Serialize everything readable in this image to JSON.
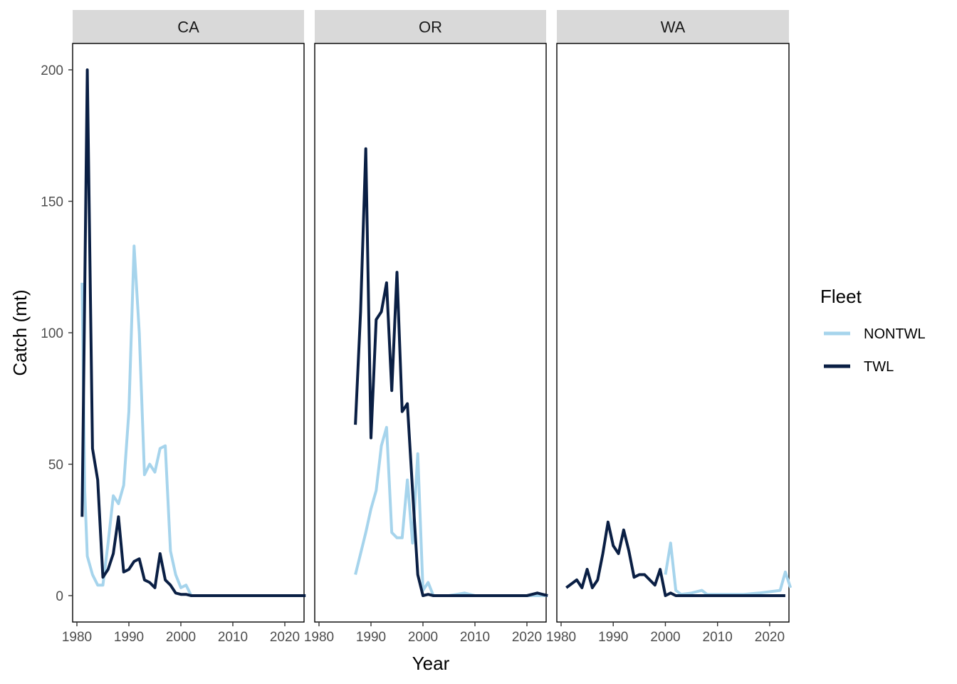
{
  "chart_data": {
    "type": "line",
    "xlabel": "Year",
    "ylabel": "Catch (mt)",
    "xlim": [
      1980,
      2025
    ],
    "ylim": [
      0,
      200
    ],
    "x_ticks": [
      1980,
      1990,
      2000,
      2010,
      2020
    ],
    "y_ticks": [
      0,
      50,
      100,
      150,
      200
    ],
    "legend": {
      "title": "Fleet",
      "placement": "right",
      "entries": [
        {
          "name": "NONTWL",
          "color": "#a6d4ec"
        },
        {
          "name": "TWL",
          "color": "#0a1f44"
        }
      ]
    },
    "facets": [
      {
        "label": "CA",
        "series": [
          {
            "name": "NONTWL",
            "color": "#a6d4ec",
            "points": [
              [
                1981,
                119
              ],
              [
                1981.5,
                40
              ],
              [
                1982,
                15
              ],
              [
                1983,
                8
              ],
              [
                1984,
                4
              ],
              [
                1985,
                4
              ],
              [
                1986,
                20
              ],
              [
                1987,
                38
              ],
              [
                1988,
                35
              ],
              [
                1989,
                42
              ],
              [
                1990,
                70
              ],
              [
                1991,
                133
              ],
              [
                1992,
                100
              ],
              [
                1993,
                46
              ],
              [
                1994,
                50
              ],
              [
                1995,
                47
              ],
              [
                1996,
                56
              ],
              [
                1997,
                57
              ],
              [
                1998,
                17
              ],
              [
                1999,
                8
              ],
              [
                2000,
                3
              ],
              [
                2001,
                4
              ],
              [
                2002,
                0
              ],
              [
                2005,
                0
              ],
              [
                2010,
                0
              ],
              [
                2015,
                0
              ],
              [
                2020,
                0
              ],
              [
                2024,
                0
              ]
            ]
          },
          {
            "name": "TWL",
            "color": "#0a1f44",
            "points": [
              [
                1981,
                30
              ],
              [
                1982,
                200
              ],
              [
                1983,
                56
              ],
              [
                1984,
                44
              ],
              [
                1985,
                7
              ],
              [
                1986,
                10
              ],
              [
                1987,
                16
              ],
              [
                1988,
                30
              ],
              [
                1989,
                9
              ],
              [
                1990,
                10
              ],
              [
                1991,
                13
              ],
              [
                1992,
                14
              ],
              [
                1993,
                6
              ],
              [
                1994,
                5
              ],
              [
                1995,
                3
              ],
              [
                1996,
                16
              ],
              [
                1997,
                6
              ],
              [
                1998,
                4
              ],
              [
                1999,
                1
              ],
              [
                2000,
                0.5
              ],
              [
                2001,
                0.5
              ],
              [
                2002,
                0
              ],
              [
                2005,
                0
              ],
              [
                2010,
                0
              ],
              [
                2015,
                0
              ],
              [
                2020,
                0
              ],
              [
                2024,
                0
              ]
            ]
          }
        ]
      },
      {
        "label": "OR",
        "series": [
          {
            "name": "NONTWL",
            "color": "#a6d4ec",
            "points": [
              [
                1987,
                8
              ],
              [
                1988,
                16
              ],
              [
                1989,
                24
              ],
              [
                1990,
                33
              ],
              [
                1991,
                40
              ],
              [
                1992,
                57
              ],
              [
                1993,
                64
              ],
              [
                1994,
                24
              ],
              [
                1995,
                22
              ],
              [
                1996,
                22
              ],
              [
                1997,
                44
              ],
              [
                1998,
                20
              ],
              [
                1999,
                54
              ],
              [
                2000,
                2
              ],
              [
                2001,
                5
              ],
              [
                2002,
                0
              ],
              [
                2005,
                0
              ],
              [
                2008,
                1
              ],
              [
                2010,
                0
              ],
              [
                2015,
                0
              ],
              [
                2020,
                0
              ],
              [
                2024,
                0
              ]
            ]
          },
          {
            "name": "TWL",
            "color": "#0a1f44",
            "points": [
              [
                1987,
                65
              ],
              [
                1988,
                108
              ],
              [
                1989,
                170
              ],
              [
                1990,
                60
              ],
              [
                1991,
                105
              ],
              [
                1992,
                108
              ],
              [
                1993,
                119
              ],
              [
                1994,
                78
              ],
              [
                1995,
                123
              ],
              [
                1996,
                70
              ],
              [
                1997,
                73
              ],
              [
                1998,
                40
              ],
              [
                1999,
                8
              ],
              [
                2000,
                0
              ],
              [
                2001,
                0.5
              ],
              [
                2002,
                0
              ],
              [
                2005,
                0
              ],
              [
                2010,
                0
              ],
              [
                2015,
                0
              ],
              [
                2020,
                0
              ],
              [
                2022,
                1
              ],
              [
                2024,
                0
              ]
            ]
          }
        ]
      },
      {
        "label": "WA",
        "series": [
          {
            "name": "NONTWL",
            "color": "#a6d4ec",
            "points": [
              [
                2000,
                8
              ],
              [
                2001,
                20
              ],
              [
                2002,
                2
              ],
              [
                2003,
                0.5
              ],
              [
                2005,
                1
              ],
              [
                2007,
                2
              ],
              [
                2008,
                0.5
              ],
              [
                2010,
                0.5
              ],
              [
                2015,
                0.5
              ],
              [
                2018,
                1
              ],
              [
                2020,
                1.5
              ],
              [
                2022,
                2
              ],
              [
                2023,
                9
              ],
              [
                2024,
                3
              ]
            ]
          },
          {
            "name": "TWL",
            "color": "#0a1f44",
            "points": [
              [
                1981,
                3
              ],
              [
                1983,
                6
              ],
              [
                1984,
                3
              ],
              [
                1985,
                10
              ],
              [
                1986,
                3
              ],
              [
                1987,
                6
              ],
              [
                1988,
                16
              ],
              [
                1989,
                28
              ],
              [
                1990,
                19
              ],
              [
                1991,
                16
              ],
              [
                1992,
                25
              ],
              [
                1993,
                17
              ],
              [
                1994,
                7
              ],
              [
                1995,
                8
              ],
              [
                1996,
                8
              ],
              [
                1997,
                6
              ],
              [
                1998,
                4
              ],
              [
                1999,
                10
              ],
              [
                2000,
                0
              ],
              [
                2001,
                1
              ],
              [
                2002,
                0
              ],
              [
                2005,
                0
              ],
              [
                2010,
                0
              ],
              [
                2015,
                0
              ],
              [
                2020,
                0
              ],
              [
                2023,
                0
              ]
            ]
          }
        ]
      }
    ]
  }
}
